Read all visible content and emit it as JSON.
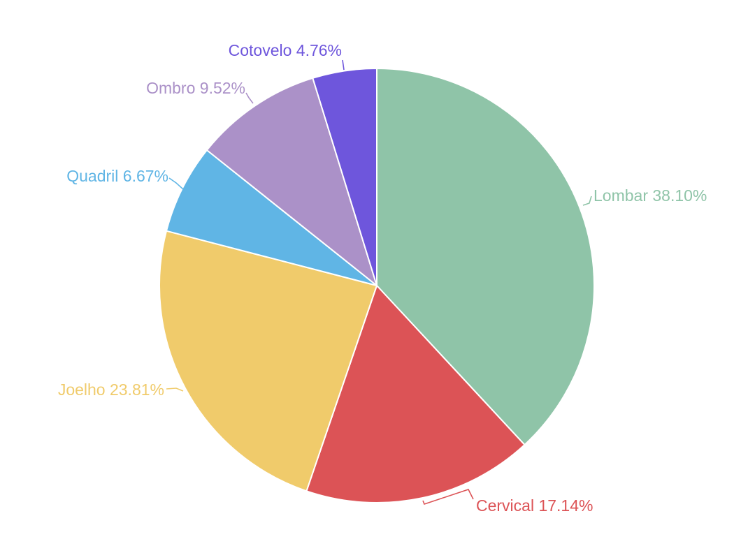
{
  "chart_data": {
    "type": "pie",
    "title": "",
    "start_angle_deg": 0,
    "direction": "clockwise",
    "slices": [
      {
        "name": "Lombar",
        "value": 38.1,
        "label": "Lombar 38.10%",
        "color": "#8fc4a8"
      },
      {
        "name": "Cervical",
        "value": 17.14,
        "label": "Cervical 17.14%",
        "color": "#dc5356"
      },
      {
        "name": "Joelho",
        "value": 23.81,
        "label": "Joelho 23.81%",
        "color": "#f0cb6b"
      },
      {
        "name": "Quadril",
        "value": 6.67,
        "label": "Quadril 6.67%",
        "color": "#60b5e5"
      },
      {
        "name": "Ombro",
        "value": 9.52,
        "label": "Ombro 9.52%",
        "color": "#ab91c8"
      },
      {
        "name": "Cotovelo",
        "value": 4.76,
        "label": "Cotovelo 4.76%",
        "color": "#6e56dc"
      }
    ]
  }
}
